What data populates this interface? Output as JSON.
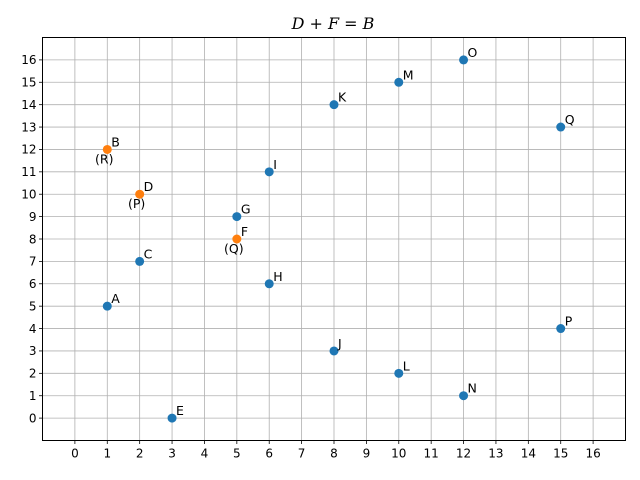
{
  "chart_data": {
    "type": "scatter",
    "title": "D + F = B",
    "xlabel": "",
    "ylabel": "",
    "xlim": [
      -1,
      17
    ],
    "ylim": [
      -1,
      17
    ],
    "grid": true,
    "x_ticks": [
      0,
      1,
      2,
      3,
      4,
      5,
      6,
      7,
      8,
      9,
      10,
      11,
      12,
      13,
      14,
      15,
      16
    ],
    "y_ticks": [
      0,
      1,
      2,
      3,
      4,
      5,
      6,
      7,
      8,
      9,
      10,
      11,
      12,
      13,
      14,
      15,
      16
    ],
    "colors": {
      "default": "#1f77b4",
      "highlight": "#ff7f0e"
    },
    "points": [
      {
        "label": "A",
        "x": 1,
        "y": 5,
        "color": "#1f77b4"
      },
      {
        "label": "B",
        "x": 1,
        "y": 12,
        "color": "#ff7f0e",
        "sublabel": "(R)"
      },
      {
        "label": "C",
        "x": 2,
        "y": 7,
        "color": "#1f77b4"
      },
      {
        "label": "D",
        "x": 2,
        "y": 10,
        "color": "#ff7f0e",
        "sublabel": "(P)"
      },
      {
        "label": "E",
        "x": 3,
        "y": 0,
        "color": "#1f77b4"
      },
      {
        "label": "F",
        "x": 5,
        "y": 8,
        "color": "#ff7f0e",
        "sublabel": "(Q)"
      },
      {
        "label": "G",
        "x": 5,
        "y": 9,
        "color": "#1f77b4"
      },
      {
        "label": "H",
        "x": 6,
        "y": 6,
        "color": "#1f77b4"
      },
      {
        "label": "I",
        "x": 6,
        "y": 11,
        "color": "#1f77b4"
      },
      {
        "label": "J",
        "x": 8,
        "y": 3,
        "color": "#1f77b4"
      },
      {
        "label": "K",
        "x": 8,
        "y": 14,
        "color": "#1f77b4"
      },
      {
        "label": "L",
        "x": 10,
        "y": 2,
        "color": "#1f77b4"
      },
      {
        "label": "M",
        "x": 10,
        "y": 15,
        "color": "#1f77b4"
      },
      {
        "label": "N",
        "x": 12,
        "y": 1,
        "color": "#1f77b4"
      },
      {
        "label": "O",
        "x": 12,
        "y": 16,
        "color": "#1f77b4"
      },
      {
        "label": "P",
        "x": 15,
        "y": 4,
        "color": "#1f77b4"
      },
      {
        "label": "Q",
        "x": 15,
        "y": 13,
        "color": "#1f77b4"
      }
    ]
  }
}
